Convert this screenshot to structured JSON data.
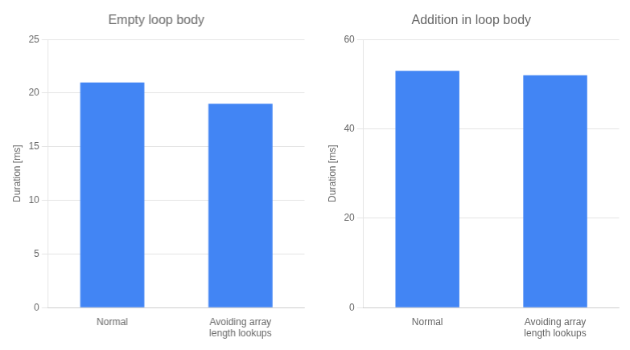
{
  "chart_data": [
    {
      "type": "bar",
      "title": "Empty loop body",
      "categories": [
        "Normal",
        "Avoiding array\nlength lookups"
      ],
      "values": [
        21.0,
        19.0
      ],
      "color": "#4285f4",
      "ylim": [
        0,
        25
      ],
      "yticks": [
        0,
        5,
        10,
        15,
        20,
        25
      ],
      "ylabel": "Duration [ms]",
      "grid": true
    },
    {
      "type": "bar",
      "title": "Addition in loop body",
      "categories": [
        "Normal",
        "Avoiding array\nlength lookups"
      ],
      "values": [
        53.0,
        52.0
      ],
      "color": "#4285f4",
      "ylim": [
        0,
        60
      ],
      "yticks": [
        0,
        20,
        40,
        60
      ],
      "ylabel": "Duration [ms]",
      "grid": true
    }
  ]
}
